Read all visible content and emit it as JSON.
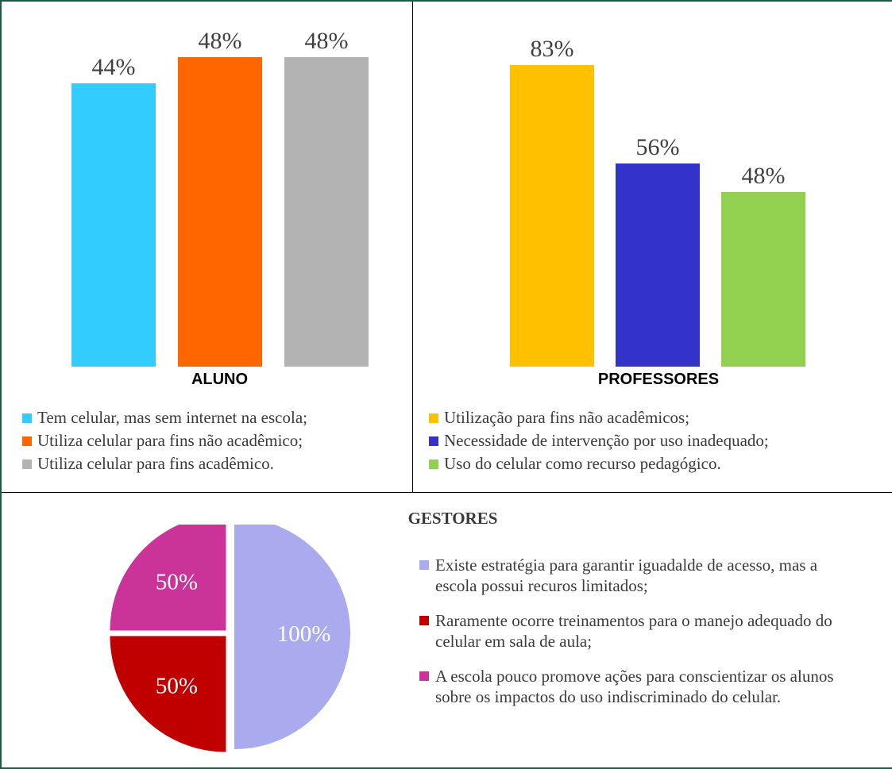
{
  "chart_data": [
    {
      "type": "bar",
      "title": "",
      "xlabel": "ALUNO",
      "ylabel": "",
      "ylim": [
        0,
        100
      ],
      "legend_position": "bottom",
      "categories": [
        "Tem celular, mas sem internet na escola;",
        "Utiliza celular para fins não acadêmico;",
        "Utiliza celular para fins acadêmico."
      ],
      "values": [
        44,
        48,
        48
      ],
      "labels": [
        "44%",
        "48%",
        "48%"
      ],
      "colors": [
        "#33ccff",
        "#ff6600",
        "#b3b3b3"
      ]
    },
    {
      "type": "bar",
      "title": "",
      "xlabel": "PROFESSORES",
      "ylabel": "",
      "ylim": [
        0,
        100
      ],
      "legend_position": "bottom",
      "categories": [
        "Utilização para fins não acadêmicos;",
        "Necessidade de intervenção por uso inadequado;",
        "Uso do celular como recurso pedagógico."
      ],
      "values": [
        83,
        56,
        48
      ],
      "labels": [
        "83%",
        "56%",
        "48%"
      ],
      "colors": [
        "#ffc000",
        "#3333cc",
        "#92d050"
      ]
    },
    {
      "type": "pie",
      "title": "GESTORES",
      "legend_position": "right",
      "categories": [
        "Existe estratégia para garantir iguadalde de acesso, mas a escola possui recuros limitados;",
        "Raramente ocorre treinamentos para o manejo adequado do celular em sala de aula;",
        "A escola pouco promove ações para conscientizar os alunos sobre os impactos do uso indiscriminado do celular."
      ],
      "values": [
        100,
        50,
        50
      ],
      "labels": [
        "100%",
        "50%",
        "50%"
      ],
      "colors": [
        "#aaaaee",
        "#c00000",
        "#cc3399"
      ]
    }
  ]
}
